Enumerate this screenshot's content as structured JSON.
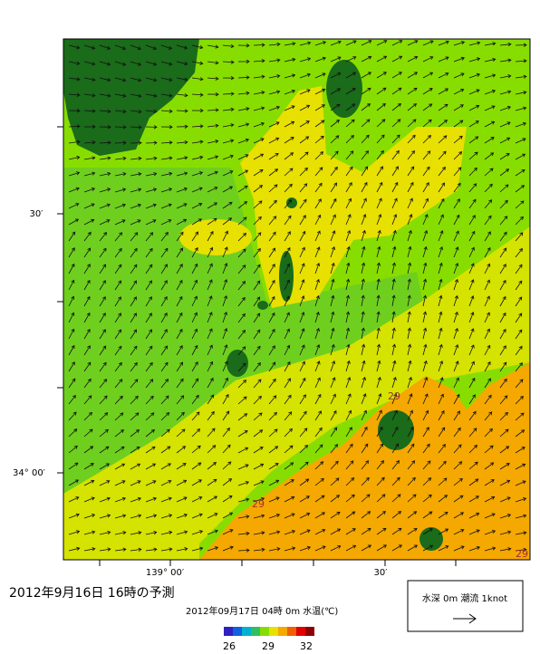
{
  "header": {
    "title": "2012年9月16日  16時の予測",
    "subtitle": "2012年09月17日 04時 0m 水温(℃)"
  },
  "axes": {
    "lat_labels": [
      "30′",
      "34° 00′"
    ],
    "lon_labels": [
      "139° 00′",
      "30′"
    ]
  },
  "contours": [
    "29",
    "29",
    "29"
  ],
  "colorbar": {
    "labels": [
      "26",
      "29",
      "32"
    ]
  },
  "legend": {
    "text": "水深 0m  潮流 1knot"
  }
}
